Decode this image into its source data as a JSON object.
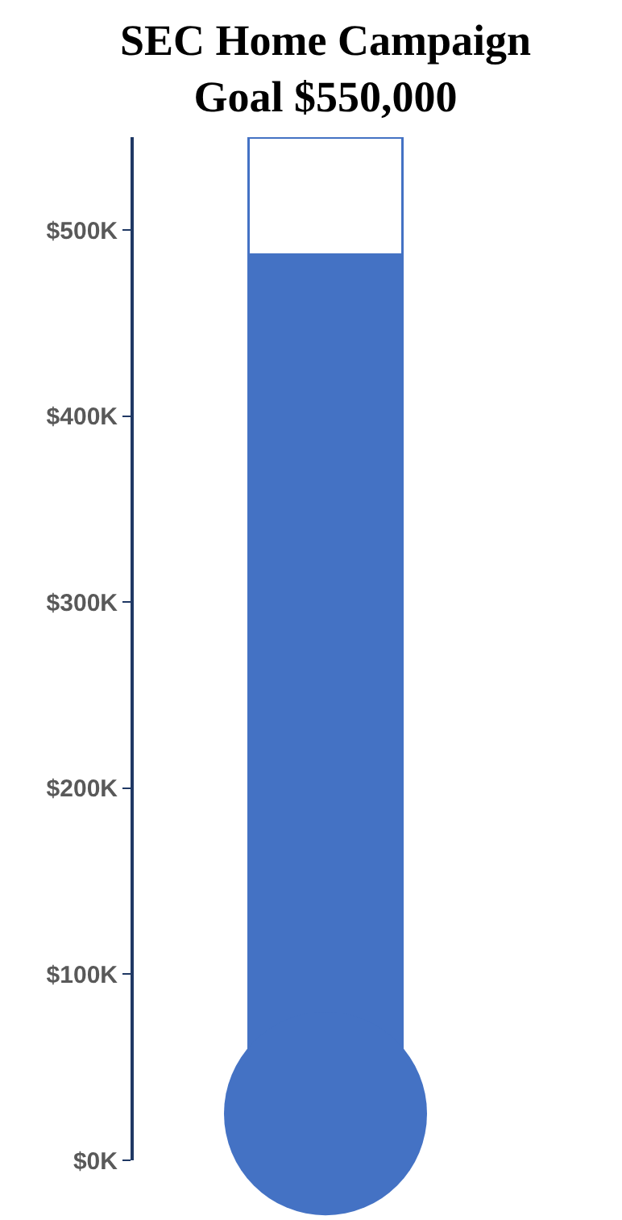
{
  "chart_data": {
    "type": "bar",
    "title": "SEC Home Campaign\nGoal $550,000",
    "stacked": true,
    "categories": [
      null
    ],
    "series": [
      {
        "color": "#4472c4",
        "values": [
          487000
        ]
      },
      {
        "color": "#ffffff",
        "values": [
          63000
        ]
      }
    ],
    "ylim": [
      0,
      550000
    ],
    "yticks": [
      {
        "value": 0,
        "label": "$0K"
      },
      {
        "value": 100000,
        "label": "$100K"
      },
      {
        "value": 200000,
        "label": "$200K"
      },
      {
        "value": 300000,
        "label": "$300K"
      },
      {
        "value": 400000,
        "label": "$400K"
      },
      {
        "value": 500000,
        "label": "$500K"
      }
    ],
    "ylabel": null
  }
}
